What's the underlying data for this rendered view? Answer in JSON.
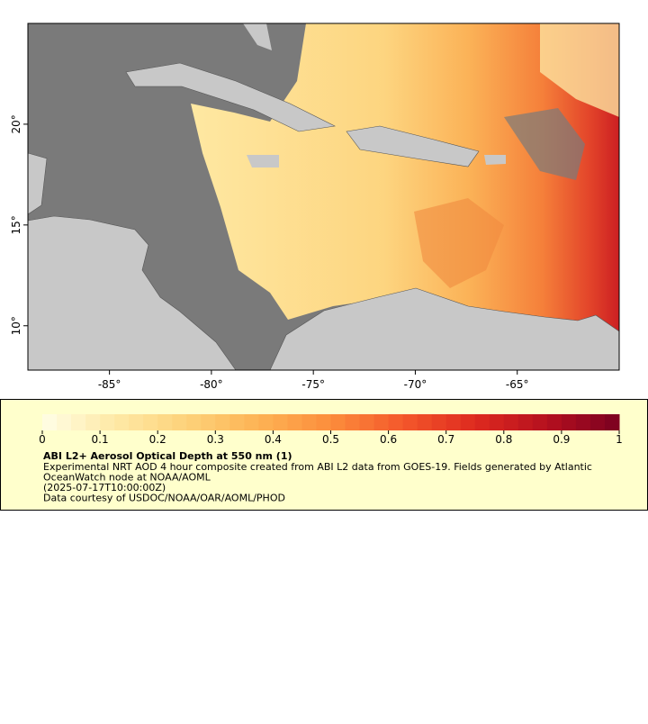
{
  "map": {
    "xlim": [
      -89,
      -60
    ],
    "ylim": [
      7.8,
      25
    ],
    "xticks": [
      {
        "value": -85,
        "label": "-85°"
      },
      {
        "value": -80,
        "label": "-80°"
      },
      {
        "value": -75,
        "label": "-75°"
      },
      {
        "value": -70,
        "label": "-70°"
      },
      {
        "value": -65,
        "label": "-65°"
      }
    ],
    "yticks": [
      {
        "value": 10,
        "label": "10°"
      },
      {
        "value": 15,
        "label": "15°"
      },
      {
        "value": 20,
        "label": "20°"
      }
    ]
  },
  "colorbar": {
    "range": [
      0,
      1
    ],
    "ticks": [
      0,
      0.1,
      0.2,
      0.3,
      0.4,
      0.5,
      0.6,
      0.7,
      0.8,
      0.9,
      1
    ],
    "steps": 40,
    "colors": [
      "#fffee6",
      "#fee9a6",
      "#fdd27a",
      "#fdb354",
      "#fc8d3c",
      "#f4582b",
      "#de2a1f",
      "#b5101f",
      "#7a0020"
    ]
  },
  "caption": {
    "title": "ABI L2+ Aerosol Optical Depth at 550 nm (1)",
    "lines": [
      "Experimental NRT AOD 4 hour composite created from ABI L2 data from GOES-19. Fields generated by Atlantic",
      "OceanWatch node at NOAA/AOML",
      "(2025-07-17T10:00:00Z)",
      "Data courtesy of USDOC/NOAA/OAR/AOML/PHOD"
    ]
  }
}
